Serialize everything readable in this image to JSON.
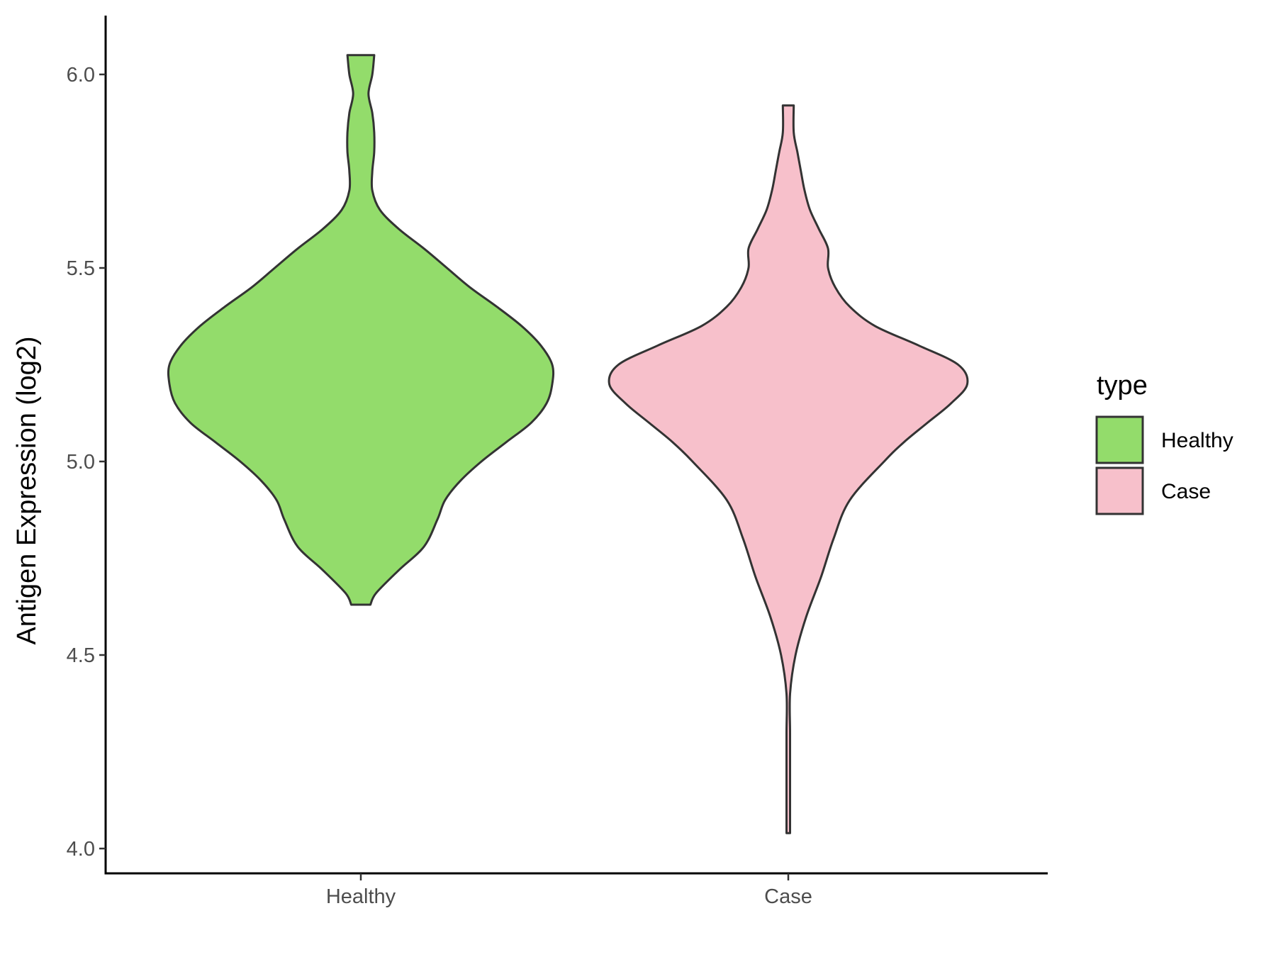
{
  "chart_data": {
    "type": "violin",
    "title": "",
    "xlabel": "",
    "ylabel": "Antigen Expression (log2)",
    "ylim": [
      3.95,
      6.15
    ],
    "yticks": [
      "4.0",
      "4.5",
      "5.0",
      "5.5",
      "6.0"
    ],
    "grid": false,
    "categories": [
      "Healthy",
      "Case"
    ],
    "legend": {
      "title": "type",
      "position": "right",
      "entries": [
        "Healthy",
        "Case"
      ]
    },
    "series": [
      {
        "name": "Healthy",
        "color": "#93dc6b",
        "min": 4.63,
        "max": 6.05,
        "density": [
          [
            4.63,
            0.05
          ],
          [
            4.66,
            0.08
          ],
          [
            4.72,
            0.2
          ],
          [
            4.78,
            0.33
          ],
          [
            4.85,
            0.4
          ],
          [
            4.9,
            0.44
          ],
          [
            4.95,
            0.52
          ],
          [
            5.0,
            0.63
          ],
          [
            5.05,
            0.76
          ],
          [
            5.1,
            0.89
          ],
          [
            5.15,
            0.97
          ],
          [
            5.2,
            1.0
          ],
          [
            5.25,
            1.0
          ],
          [
            5.3,
            0.94
          ],
          [
            5.35,
            0.84
          ],
          [
            5.4,
            0.71
          ],
          [
            5.45,
            0.57
          ],
          [
            5.5,
            0.45
          ],
          [
            5.55,
            0.33
          ],
          [
            5.6,
            0.2
          ],
          [
            5.65,
            0.1
          ],
          [
            5.7,
            0.06
          ],
          [
            5.75,
            0.06
          ],
          [
            5.8,
            0.07
          ],
          [
            5.85,
            0.07
          ],
          [
            5.9,
            0.06
          ],
          [
            5.95,
            0.04
          ],
          [
            6.0,
            0.06
          ],
          [
            6.05,
            0.07
          ]
        ]
      },
      {
        "name": "Case",
        "color": "#f7c0cb",
        "min": 4.04,
        "max": 5.92,
        "density": [
          [
            4.04,
            0.01
          ],
          [
            4.1,
            0.01
          ],
          [
            4.2,
            0.005
          ],
          [
            4.3,
            0.005
          ],
          [
            4.4,
            0.01
          ],
          [
            4.5,
            0.04
          ],
          [
            4.6,
            0.1
          ],
          [
            4.7,
            0.18
          ],
          [
            4.8,
            0.25
          ],
          [
            4.9,
            0.34
          ],
          [
            5.0,
            0.53
          ],
          [
            5.05,
            0.64
          ],
          [
            5.1,
            0.77
          ],
          [
            5.15,
            0.9
          ],
          [
            5.2,
            0.99
          ],
          [
            5.25,
            0.94
          ],
          [
            5.3,
            0.72
          ],
          [
            5.35,
            0.48
          ],
          [
            5.4,
            0.34
          ],
          [
            5.45,
            0.26
          ],
          [
            5.5,
            0.22
          ],
          [
            5.55,
            0.22
          ],
          [
            5.6,
            0.17
          ],
          [
            5.65,
            0.12
          ],
          [
            5.7,
            0.09
          ],
          [
            5.75,
            0.07
          ],
          [
            5.8,
            0.05
          ],
          [
            5.85,
            0.03
          ],
          [
            5.92,
            0.03
          ]
        ]
      }
    ]
  }
}
